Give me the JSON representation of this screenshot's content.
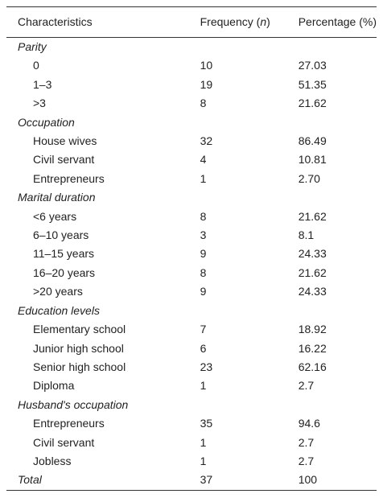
{
  "table": {
    "header": [
      "Characteristics",
      [
        "Frequency (",
        "n",
        ")"
      ],
      "Percentage (%)"
    ],
    "sections": [
      {
        "title": "Parity",
        "rows": [
          [
            "0",
            "10",
            "27.03"
          ],
          [
            "1–3",
            "19",
            "51.35"
          ],
          [
            ">3",
            "8",
            "21.62"
          ]
        ]
      },
      {
        "title": "Occupation",
        "rows": [
          [
            "House wives",
            "32",
            "86.49"
          ],
          [
            "Civil servant",
            "4",
            "10.81"
          ],
          [
            "Entrepreneurs",
            "1",
            "2.70"
          ]
        ]
      },
      {
        "title": "Marital duration",
        "rows": [
          [
            "<6 years",
            "8",
            "21.62"
          ],
          [
            "6–10 years",
            "3",
            "8.1"
          ],
          [
            "11–15 years",
            "9",
            "24.33"
          ],
          [
            "16–20 years",
            "8",
            "21.62"
          ],
          [
            ">20 years",
            "9",
            "24.33"
          ]
        ]
      },
      {
        "title": "Education levels",
        "rows": [
          [
            "Elementary school",
            "7",
            "18.92"
          ],
          [
            "Junior high school",
            "6",
            "16.22"
          ],
          [
            "Senior high school",
            "23",
            "62.16"
          ],
          [
            "Diploma",
            "1",
            "2.7"
          ]
        ]
      },
      {
        "title": "Husband's occupation",
        "rows": [
          [
            "Entrepreneurs",
            "35",
            "94.6"
          ],
          [
            "Civil servant",
            "1",
            "2.7"
          ],
          [
            "Jobless",
            "1",
            "2.7"
          ]
        ]
      }
    ],
    "total": [
      "Total",
      "37",
      "100"
    ]
  }
}
